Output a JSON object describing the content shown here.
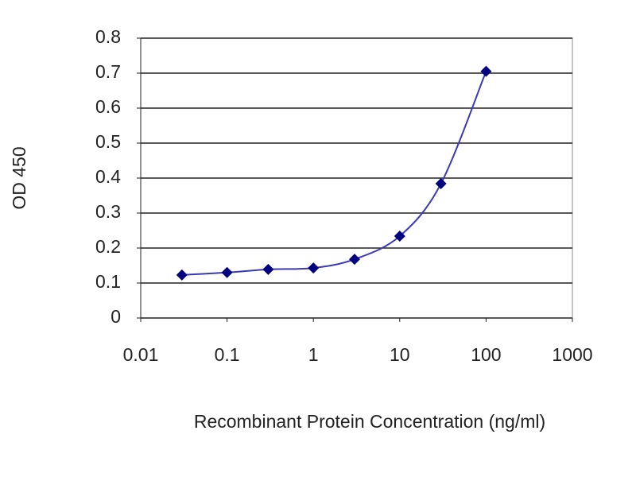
{
  "chart_data": {
    "type": "line",
    "x_label": "Recombinant  Protein Concentration (ng/ml)",
    "y_label": "OD 450",
    "x": [
      0.03,
      0.1,
      0.3,
      1,
      3,
      10,
      30,
      100
    ],
    "values": [
      0.123,
      0.13,
      0.139,
      0.143,
      0.168,
      0.234,
      0.384,
      0.705
    ],
    "color": "#000080",
    "line_color": "#3a3ab8",
    "xscale": "log",
    "xlim": [
      0.01,
      1000
    ],
    "xticks": [
      0.01,
      0.1,
      1,
      10,
      100,
      1000
    ],
    "ylim": [
      0,
      0.8
    ],
    "yticks": [
      0,
      0.1,
      0.2,
      0.3,
      0.4,
      0.5,
      0.6,
      0.7,
      0.8
    ],
    "grid": true
  }
}
